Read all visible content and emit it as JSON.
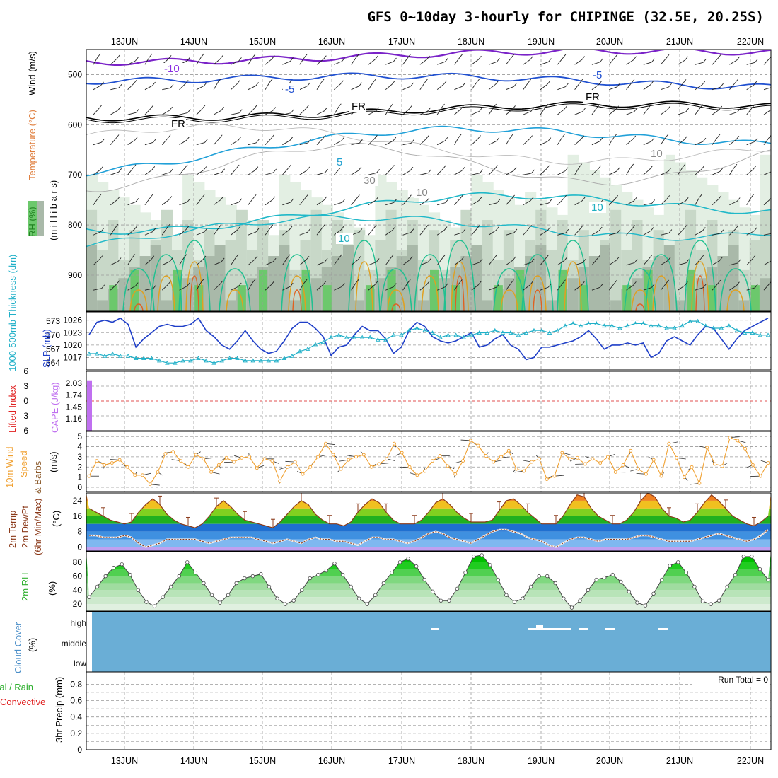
{
  "title": "GFS 0~10day 3-hourly for CHIPINGE (32.5E, 20.25S)",
  "dates": [
    "13JUN",
    "14JUN",
    "15JUN",
    "16JUN",
    "17JUN",
    "18JUN",
    "19JUN",
    "20JUN",
    "21JUN",
    "22JUN"
  ],
  "colors": {
    "grid": "#9a9a9a",
    "cyan": "#20b0c8",
    "blue": "#1f3fc8",
    "orange": "#f0a030",
    "purple": "#c070f0",
    "cloud": "#6aaed6",
    "rh_green": "#30b030",
    "brown": "#8b3a1a",
    "red": "#e02020"
  },
  "chart_data": [
    {
      "id": "upper_air",
      "type": "heatmap",
      "ylabel_parts": [
        {
          "text": "Wind (m/s)",
          "color": "#000000"
        },
        {
          "text": "Temperature (°C)",
          "color": "#e08040"
        },
        {
          "text": "RH (%)",
          "color": "#208020"
        }
      ],
      "ylabel_units": "(m i l l i b a r s)",
      "yticks": [
        500,
        600,
        700,
        800,
        900
      ],
      "ylim": [
        1000,
        450
      ],
      "contour_labels": [
        {
          "text": "-10",
          "color": "#8a2be2"
        },
        {
          "text": "-5",
          "color": "#1f4fd0"
        },
        {
          "text": "-5",
          "color": "#1f4fd0"
        },
        {
          "text": "FR",
          "color": "#000000"
        },
        {
          "text": "FR",
          "color": "#000000"
        },
        {
          "text": "FR",
          "color": "#000000"
        },
        {
          "text": "5",
          "color": "#20a0d0"
        },
        {
          "text": "10",
          "color": "#20b0c0"
        },
        {
          "text": "10",
          "color": "#20b0c0"
        },
        {
          "text": "30",
          "color": "#888888"
        },
        {
          "text": "10",
          "color": "#888888"
        },
        {
          "text": "10",
          "color": "#888888"
        }
      ]
    },
    {
      "id": "slp_thickness",
      "type": "line",
      "ylabel_left": "1000-500mb Thickness (dm)",
      "ylabel_right": "SLP (mb)",
      "ylim_left": [
        662,
        576
      ],
      "yticks_left": [
        564,
        567,
        570,
        573
      ],
      "ylim_right": [
        1014,
        1028
      ],
      "yticks_right": [
        1017,
        1020,
        1023,
        1026
      ],
      "series": [
        {
          "name": "SLP (mb)",
          "color": "#1f3fc8",
          "values": [
            1022.5,
            1025.5,
            1026,
            1025.5,
            1026.5,
            1025,
            1019.5,
            1021.5,
            1023,
            1024.5,
            1025,
            1024.5,
            1024.5,
            1025,
            1026.5,
            1023.5,
            1022,
            1020,
            1019,
            1021,
            1023.5,
            1021,
            1019,
            1018,
            1018.5,
            1021,
            1024,
            1025.5,
            1025.5,
            1024,
            1022,
            1017.5,
            1019.5,
            1020,
            1022.5,
            1024.5,
            1023.5,
            1023.5,
            1021.5,
            1018,
            1019.5,
            1023.5,
            1025.5,
            1024.5,
            1022,
            1021,
            1020.5,
            1021,
            1022,
            1023,
            1019.5,
            1020,
            1021.5,
            1022.5,
            1020,
            1019,
            1016.5,
            1017,
            1019.5,
            1019.5,
            1020,
            1020.5,
            1021,
            1022,
            1023.5,
            1021.5,
            1019,
            1020,
            1020,
            1020.5,
            1020,
            1020.5,
            1017,
            1018,
            1021,
            1022,
            1021,
            1020,
            1022.5,
            1024.5,
            1024,
            1021.5,
            1019,
            1021.5,
            1023.5,
            1024.5,
            1025.5,
            1026.5
          ]
        },
        {
          "name": "1000-500mb Thickness (dm)",
          "color": "#20b0c8",
          "values": [
            566,
            566,
            565.5,
            566,
            565.5,
            565.5,
            565,
            565,
            565,
            564.5,
            564,
            564,
            564.5,
            564.5,
            565,
            564.5,
            564,
            564.5,
            565,
            565,
            564.5,
            564.5,
            564.5,
            564.5,
            564.5,
            565,
            565.5,
            566.5,
            567,
            568,
            568.5,
            569.5,
            570,
            569.5,
            569.5,
            569.5,
            569.5,
            569,
            569,
            570,
            570,
            571,
            571.5,
            571,
            570.5,
            569.5,
            570,
            570,
            569.5,
            570,
            570.5,
            570.5,
            571,
            570.5,
            570.5,
            570,
            570.5,
            571,
            571,
            570.5,
            571,
            572,
            572.5,
            572,
            572.5,
            572.5,
            572,
            572,
            571.5,
            572,
            572.5,
            572.5,
            572,
            572,
            571.5,
            571.5,
            572,
            573,
            573,
            572,
            571.5,
            571.5,
            572,
            571,
            570.5,
            570.5,
            570,
            570
          ]
        }
      ]
    },
    {
      "id": "cape_li",
      "type": "bar",
      "ylabel_left": "Lifted Index",
      "ylabel_right": "CAPE (J/kg)",
      "yticks_left": [
        6,
        3,
        0,
        -3,
        -6
      ],
      "ylim_left": [
        6,
        -6
      ],
      "yticks_right": [
        1.16,
        1.45,
        1.74,
        2.03
      ],
      "ylim_right": [
        0.87,
        2.32
      ],
      "series": [
        {
          "name": "CAPE (J/kg)",
          "color": "#c070f0",
          "values": [
            2.1
          ]
        }
      ]
    },
    {
      "id": "wind10m",
      "type": "line",
      "ylabel": "10m Wind Speed & Barbs (m/s)",
      "yticks": [
        0,
        1,
        2,
        3,
        4,
        5
      ],
      "ylim": [
        0,
        5.5
      ],
      "series": [
        {
          "name": "10m Wind Speed",
          "color": "#f0a030",
          "values": [
            1.1,
            2.6,
            2.2,
            2.4,
            2.7,
            2.0,
            1.2,
            1.2,
            0.3,
            1.5,
            3.3,
            3.5,
            2.6,
            2.0,
            3.2,
            2.8,
            1.5,
            2.2,
            2.9,
            2.5,
            2.9,
            3.0,
            1.9,
            2.8,
            2.6,
            0.6,
            2.0,
            2.5,
            1.3,
            2.0,
            3.0,
            4.3,
            3.2,
            1.8,
            2.7,
            3.0,
            3.2,
            2.0,
            2.3,
            2.8,
            4.3,
            3.4,
            2.0,
            1.2,
            1.6,
            2.6,
            3.1,
            2.1,
            1.3,
            2.6,
            4.6,
            4.1,
            3.1,
            2.5,
            3.0,
            3.6,
            1.8,
            1.6,
            2.5,
            2.8,
            0.8,
            1.1,
            3.4,
            2.8,
            2.9,
            2.3,
            2.8,
            2.4,
            3.0,
            1.5,
            2.2,
            3.6,
            1.8,
            1.3,
            2.7,
            1.1,
            4.3,
            2.9,
            1.0,
            2.0,
            0.4,
            3.9,
            2.3,
            2.1,
            4.9,
            4.6,
            3.8,
            2.2,
            1.1,
            2.4
          ]
        }
      ]
    },
    {
      "id": "temp_dewpt",
      "type": "area",
      "ylabel": "2m Temp 2m DewPt (6hr Min/Max) (°C)",
      "yticks": [
        0,
        8,
        16,
        24
      ],
      "ylim": [
        -2,
        28
      ],
      "series": [
        {
          "name": "2m Temp",
          "color": "#8b3a1a",
          "values": [
            20,
            18,
            16,
            14,
            13,
            12,
            13,
            18,
            22,
            25,
            22,
            17,
            14,
            12,
            11,
            10,
            12,
            16,
            21,
            24,
            21,
            17,
            14,
            13,
            12,
            11,
            10,
            13,
            17,
            21,
            24,
            22,
            17,
            14,
            12,
            12,
            11,
            13,
            18,
            22,
            25,
            23,
            18,
            14,
            12,
            12,
            12,
            14,
            18,
            23,
            25,
            22,
            18,
            15,
            13,
            13,
            13,
            14,
            19,
            24,
            25,
            22,
            18,
            15,
            12,
            12,
            12,
            16,
            22,
            27,
            26,
            20,
            16,
            14,
            12,
            12,
            14,
            18,
            24,
            28,
            26,
            20,
            16,
            15,
            13,
            14,
            18,
            23,
            27,
            24,
            20,
            16,
            14,
            12,
            11,
            13,
            16
          ]
        },
        {
          "name": "2m DewPt",
          "color": "#8b3a1a",
          "values": [
            6,
            6,
            5,
            5,
            5,
            6,
            5,
            2,
            0,
            1,
            2,
            4,
            4,
            4,
            4,
            4,
            3,
            2,
            3,
            4,
            5,
            5,
            5,
            5,
            4,
            3,
            2,
            3,
            4,
            3,
            2,
            4,
            5,
            4,
            4,
            3,
            3,
            2,
            1,
            3,
            5,
            5,
            4,
            4,
            3,
            2,
            3,
            5,
            7,
            8,
            7,
            5,
            4,
            3,
            2,
            4,
            6,
            8,
            9,
            9,
            8,
            7,
            5,
            4,
            3,
            1,
            0,
            2,
            4,
            5,
            5,
            4,
            3,
            4,
            4,
            4,
            4,
            5,
            6,
            6,
            5,
            4,
            3,
            3,
            3,
            3,
            4,
            5,
            6,
            7,
            6,
            5,
            4,
            3,
            4,
            6,
            9
          ]
        }
      ]
    },
    {
      "id": "rh2m",
      "type": "area",
      "ylabel": "2m RH (%)",
      "yticks": [
        20,
        40,
        60,
        80
      ],
      "ylim": [
        10,
        95
      ],
      "series": [
        {
          "name": "2m RH",
          "color": "#30b030",
          "values": [
            30,
            45,
            60,
            72,
            77,
            62,
            40,
            23,
            17,
            30,
            45,
            60,
            80,
            65,
            50,
            33,
            22,
            33,
            50,
            57,
            60,
            63,
            45,
            28,
            20,
            25,
            40,
            57,
            62,
            68,
            78,
            62,
            45,
            28,
            20,
            33,
            50,
            65,
            80,
            85,
            74,
            55,
            38,
            25,
            25,
            42,
            65,
            88,
            90,
            76,
            55,
            33,
            23,
            28,
            45,
            60,
            60,
            50,
            28,
            15,
            25,
            40,
            55,
            58,
            62,
            52,
            38,
            22,
            18,
            35,
            55,
            75,
            80,
            65,
            45,
            24,
            20,
            25,
            45,
            62,
            88,
            88,
            70,
            55
          ]
        }
      ]
    },
    {
      "id": "cloud",
      "type": "heatmap",
      "ylabel": "Cloud Cover (%)",
      "levels": [
        "high",
        "middle",
        "low"
      ],
      "color": "#6aaed6"
    },
    {
      "id": "precip",
      "type": "bar",
      "ylabel": "3hr Precip (mm)",
      "legend": [
        {
          "text": "Total / Rain",
          "color": "#30b030"
        },
        {
          "text": "Convective",
          "color": "#e02020"
        }
      ],
      "yticks": [
        0,
        0.2,
        0.4,
        0.6,
        0.8
      ],
      "ylim": [
        0,
        0.95
      ],
      "annotation": "Run Total = 0",
      "values": []
    }
  ]
}
